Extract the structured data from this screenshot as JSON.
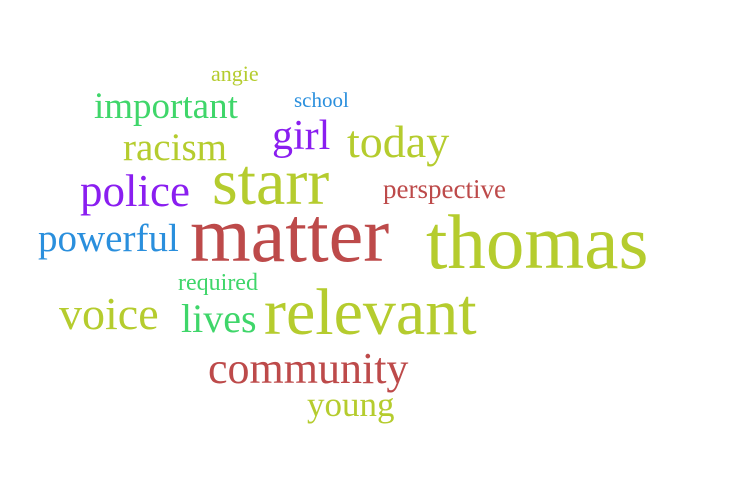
{
  "palette": {
    "lime": "#b5cc2e",
    "red": "#bd4a4a",
    "purple": "#8a1ef0",
    "blue": "#2a8fdd",
    "green": "#3fd66a"
  },
  "words": [
    {
      "id": "angie",
      "text": "angie",
      "color": "#b5cc2e"
    },
    {
      "id": "school",
      "text": "school",
      "color": "#2a8fdd"
    },
    {
      "id": "important",
      "text": "important",
      "color": "#3fd66a"
    },
    {
      "id": "girl",
      "text": "girl",
      "color": "#8a1ef0"
    },
    {
      "id": "today",
      "text": "today",
      "color": "#b5cc2e"
    },
    {
      "id": "racism",
      "text": "racism",
      "color": "#b5cc2e"
    },
    {
      "id": "police",
      "text": "police",
      "color": "#8a1ef0"
    },
    {
      "id": "starr",
      "text": "starr",
      "color": "#b5cc2e"
    },
    {
      "id": "perspective",
      "text": "perspective",
      "color": "#bd4a4a"
    },
    {
      "id": "powerful",
      "text": "powerful",
      "color": "#2a8fdd"
    },
    {
      "id": "matter",
      "text": "matter",
      "color": "#bd4a4a"
    },
    {
      "id": "thomas",
      "text": "thomas",
      "color": "#b5cc2e"
    },
    {
      "id": "required",
      "text": "required",
      "color": "#3fd66a"
    },
    {
      "id": "voice",
      "text": "voice",
      "color": "#b5cc2e"
    },
    {
      "id": "lives",
      "text": "lives",
      "color": "#3fd66a"
    },
    {
      "id": "relevant",
      "text": "relevant",
      "color": "#b5cc2e"
    },
    {
      "id": "community",
      "text": "community",
      "color": "#bd4a4a"
    },
    {
      "id": "young",
      "text": "young",
      "color": "#b5cc2e"
    }
  ]
}
